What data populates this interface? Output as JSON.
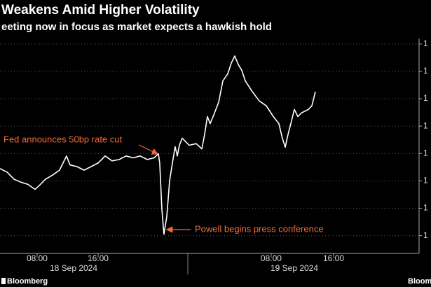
{
  "chart_data": {
    "type": "line",
    "title": "Weakens Amid Higher Volatility",
    "subtitle": "eeting now in focus as market expects a hawkish hold",
    "source": "Bloomberg",
    "source_right": "Bloom",
    "dates": [
      "18 Sep 2024",
      "19 Sep 2024"
    ],
    "annotations": [
      "Fed announces 50bp rate cut",
      "Powell begins press conference"
    ],
    "xlim": [
      3.13,
      59.68
    ],
    "xticks": [
      {
        "value": 8,
        "label": "08:00"
      },
      {
        "value": 16,
        "label": "16:00"
      },
      {
        "value": 38.71,
        "label": "08:00"
      },
      {
        "value": 46.9,
        "label": "16:00"
      }
    ],
    "ylim": [
      0.35,
      8.2
    ],
    "yticks": [
      {
        "value": 1,
        "label": "1"
      },
      {
        "value": 2,
        "label": "1"
      },
      {
        "value": 3,
        "label": "1"
      },
      {
        "value": 4,
        "label": "1"
      },
      {
        "value": 5,
        "label": "1"
      },
      {
        "value": 6,
        "label": "1"
      },
      {
        "value": 7,
        "label": "1"
      },
      {
        "value": 8,
        "label": "1"
      }
    ],
    "grid": true,
    "series": [
      {
        "color": "#ffffff",
        "x": [
          3.13,
          4.05,
          4.97,
          5.89,
          6.8,
          7.72,
          8.18,
          9.1,
          10.02,
          10.94,
          11.86,
          12.32,
          13.24,
          14.16,
          15.08,
          16.0,
          16.92,
          17.84,
          18.76,
          19.68,
          20.6,
          21.52,
          22.44,
          23.36,
          23.91,
          24.09,
          24.37,
          24.64,
          25.01,
          25.38,
          25.75,
          26.11,
          26.39,
          26.67,
          27.03,
          27.49,
          27.95,
          28.87,
          29.61,
          29.98,
          30.34,
          30.71,
          31.17,
          31.82,
          32.37,
          33.01,
          33.47,
          33.93,
          34.39,
          34.85,
          35.31,
          36.23,
          37.15,
          38.07,
          38.99,
          39.72,
          40.18,
          40.55,
          40.92,
          41.29,
          41.75,
          42.21,
          42.67,
          43.59,
          44.05,
          44.51
        ],
        "values": [
          3.45,
          3.32,
          3.06,
          2.95,
          2.87,
          2.69,
          2.8,
          3.06,
          3.21,
          3.39,
          3.91,
          3.58,
          3.52,
          3.39,
          3.52,
          3.65,
          3.91,
          3.73,
          3.78,
          3.91,
          3.84,
          3.91,
          3.78,
          3.84,
          3.99,
          3.65,
          1.96,
          1.05,
          1.7,
          3.0,
          3.65,
          4.25,
          3.91,
          4.3,
          4.56,
          4.43,
          4.3,
          4.36,
          4.17,
          4.7,
          5.35,
          5.09,
          5.4,
          5.87,
          6.65,
          6.91,
          7.3,
          7.56,
          7.25,
          7.04,
          6.65,
          6.26,
          5.92,
          5.74,
          5.35,
          5.09,
          4.56,
          4.23,
          4.7,
          5.09,
          5.61,
          5.35,
          5.48,
          5.61,
          5.74,
          6.26
        ]
      }
    ]
  }
}
